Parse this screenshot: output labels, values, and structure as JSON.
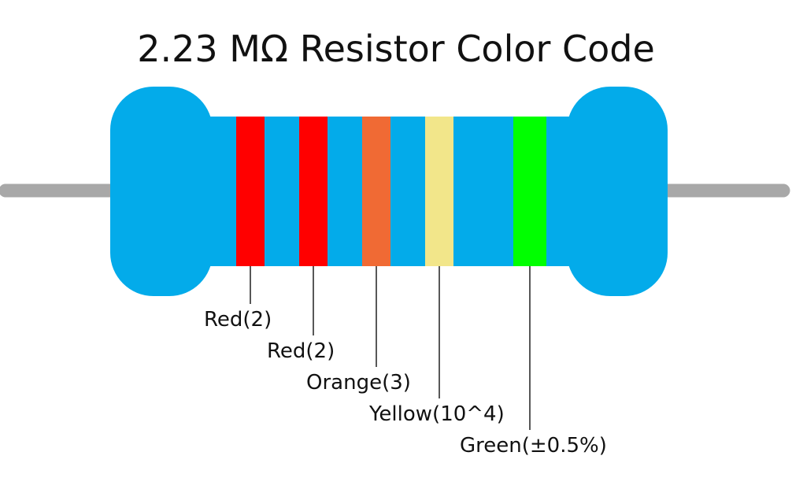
{
  "title": "2.23 MΩ Resistor Color Code",
  "colors": {
    "body": "#03abea",
    "lead": "#a8a8a8",
    "leader_line": "#111111"
  },
  "bands": [
    {
      "color_name": "Red",
      "color": "#ff0000",
      "label": "Red(2)"
    },
    {
      "color_name": "Red",
      "color": "#ff0000",
      "label": "Red(2)"
    },
    {
      "color_name": "Orange",
      "color": "#f06a34",
      "label": "Orange(3)"
    },
    {
      "color_name": "Yellow",
      "color": "#f2e68a",
      "label": "Yellow(10^4)"
    },
    {
      "color_name": "Green",
      "color": "#00ff00",
      "label": "Green(±0.5%)"
    }
  ]
}
